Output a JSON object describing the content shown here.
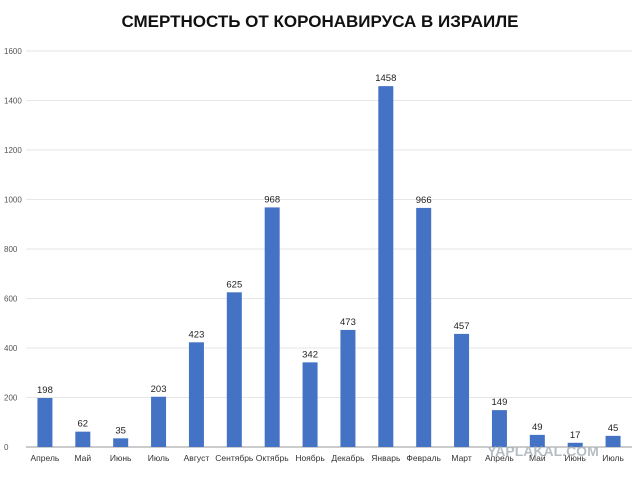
{
  "chart_data": {
    "type": "bar",
    "title": "СМЕРТНОСТЬ ОТ КОРОНАВИРУСА В ИЗРАИЛЕ",
    "categories": [
      "Апрель",
      "Май",
      "Июнь",
      "Июль",
      "Август",
      "Сентябрь",
      "Октябрь",
      "Ноябрь",
      "Декабрь",
      "Январь",
      "Февраль",
      "Март",
      "Апрель",
      "Май",
      "Июнь",
      "Июль"
    ],
    "values": [
      198,
      62,
      35,
      203,
      423,
      625,
      968,
      342,
      473,
      1458,
      966,
      457,
      149,
      49,
      17,
      45
    ],
    "ylim": [
      0,
      1600
    ],
    "yticks": [
      0,
      200,
      400,
      600,
      800,
      1000,
      1200,
      1400,
      1600
    ],
    "grid": true,
    "data_labels": true,
    "bar_color": "#4472c4"
  },
  "watermark": "YAPLAKAL.COM"
}
